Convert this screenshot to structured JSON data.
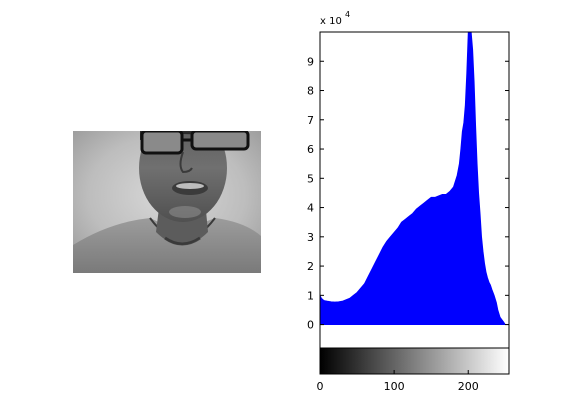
{
  "image_panel": {
    "kind": "grayscale-photo",
    "subject_icon": "face-photo-icon"
  },
  "chart_data": {
    "type": "area",
    "title": "",
    "xlabel": "",
    "ylabel": "",
    "bar_color": "#0000ff",
    "xlim": [
      0,
      255
    ],
    "ylim": [
      -8000,
      100000
    ],
    "y_exponent_label": "x 10",
    "y_exponent_power": "4",
    "x_ticks": [
      0,
      100,
      200
    ],
    "x_tick_labels": [
      "0",
      "100",
      "200"
    ],
    "y_ticks": [
      0,
      10000,
      20000,
      30000,
      40000,
      50000,
      60000,
      70000,
      80000,
      90000
    ],
    "y_tick_labels": [
      "0",
      "1",
      "2",
      "3",
      "4",
      "5",
      "6",
      "7",
      "8",
      "9"
    ],
    "grid": false,
    "colorbar": "grayscale 0-255",
    "series": [
      {
        "x": [
          0,
          2,
          4,
          6,
          10,
          15,
          20,
          25,
          30,
          35,
          40,
          45,
          50,
          55,
          60,
          65,
          70,
          75,
          80,
          85,
          90,
          95,
          100,
          105,
          110,
          115,
          120,
          125,
          130,
          135,
          140,
          145,
          150,
          155,
          160,
          165,
          170,
          175,
          180,
          185,
          188,
          190,
          192,
          194,
          196,
          198,
          200,
          202,
          204,
          206,
          208,
          210,
          212,
          214,
          216,
          218,
          220,
          222,
          224,
          226,
          228,
          230,
          232,
          235,
          238,
          240,
          243,
          246,
          248,
          250,
          252,
          255
        ],
        "values": [
          10000,
          9000,
          8500,
          8200,
          8000,
          7800,
          7700,
          7800,
          8000,
          8500,
          9000,
          10000,
          11000,
          12500,
          14000,
          16500,
          19000,
          21500,
          24000,
          26500,
          28500,
          30000,
          31500,
          33000,
          35000,
          36000,
          37000,
          38000,
          39500,
          40500,
          41500,
          42500,
          43500,
          43500,
          44000,
          44500,
          44500,
          45500,
          47000,
          51000,
          55000,
          60000,
          66000,
          69000,
          75000,
          86000,
          100000,
          100000,
          100000,
          94000,
          83000,
          68000,
          55000,
          45000,
          38000,
          30000,
          25000,
          21000,
          18000,
          16000,
          14500,
          13500,
          12000,
          10000,
          7500,
          5000,
          2500,
          1500,
          800,
          0,
          0,
          0
        ]
      }
    ]
  }
}
